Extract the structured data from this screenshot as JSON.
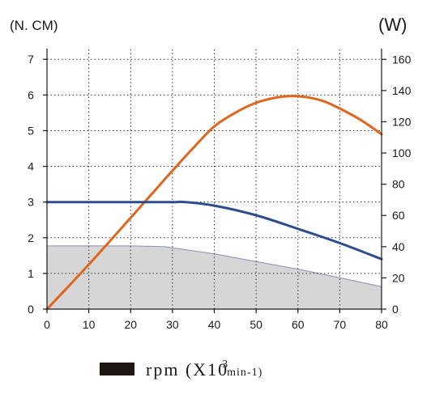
{
  "chart_data": {
    "type": "line",
    "left_unit_label": "(N. CM)",
    "right_unit_label": "(W)",
    "x_ticks": [
      0,
      10,
      20,
      30,
      40,
      50,
      60,
      70,
      80
    ],
    "left_ticks": [
      0,
      1,
      2,
      3,
      4,
      5,
      6,
      7
    ],
    "right_ticks": [
      0,
      20,
      40,
      60,
      80,
      100,
      120,
      140,
      160
    ],
    "xlim": [
      0,
      80
    ],
    "ylim_left": [
      0,
      7.3
    ],
    "ylim_right": [
      0,
      166.9
    ],
    "grid": true,
    "legend": {
      "text_main": "rpm (X10",
      "text_exp": "3",
      "text_unit": "min",
      "text_tail": "-1)"
    },
    "series": [
      {
        "axis": "left",
        "color": "#e0661f",
        "style": "line",
        "x": [
          0,
          5,
          10,
          15,
          20,
          25,
          30,
          35,
          40,
          45,
          50,
          55,
          58.5,
          62,
          66,
          70,
          75,
          80
        ],
        "y": [
          0,
          0.62,
          1.25,
          1.9,
          2.56,
          3.22,
          3.88,
          4.52,
          5.12,
          5.5,
          5.78,
          5.93,
          5.97,
          5.94,
          5.83,
          5.62,
          5.3,
          4.9
        ]
      },
      {
        "axis": "left",
        "color": "#2e4d8f",
        "style": "line",
        "x": [
          0,
          10,
          20,
          30,
          33,
          40,
          50,
          60,
          70,
          80
        ],
        "y": [
          3.0,
          3.0,
          3.0,
          3.0,
          3.0,
          2.9,
          2.63,
          2.25,
          1.85,
          1.4
        ]
      },
      {
        "axis": "left",
        "color": "#d6d6d6",
        "style": "area",
        "x": [
          0,
          10,
          20,
          28,
          40,
          50,
          60,
          70,
          80
        ],
        "y": [
          1.77,
          1.77,
          1.77,
          1.75,
          1.55,
          1.33,
          1.12,
          0.88,
          0.63
        ]
      }
    ]
  },
  "colors": {
    "axis": "#1a1a1a",
    "grid": "#333333",
    "area_edge": "#8a8fb0",
    "legend_swatch": "#1e1714"
  }
}
